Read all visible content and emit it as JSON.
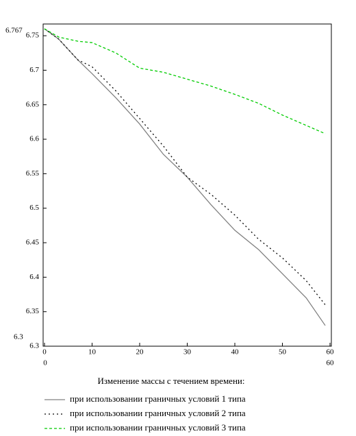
{
  "chart_data": {
    "type": "line",
    "title": "Изменение массы с течением времени:",
    "x": [
      0,
      3,
      7,
      10,
      15,
      20,
      25,
      30,
      35,
      40,
      45,
      50,
      55,
      59
    ],
    "series": [
      {
        "name": "при использовании граничных условий 1 типа",
        "color": "#808080",
        "style": "solid",
        "values": [
          6.76,
          6.745,
          6.715,
          6.695,
          6.66,
          6.622,
          6.578,
          6.545,
          6.505,
          6.468,
          6.44,
          6.405,
          6.37,
          6.33
        ]
      },
      {
        "name": "при использовании граничных условий 2 типа",
        "color": "#000000",
        "style": "dotted",
        "values": [
          6.76,
          6.745,
          6.715,
          6.705,
          6.67,
          6.63,
          6.59,
          6.545,
          6.52,
          6.49,
          6.455,
          6.428,
          6.395,
          6.36
        ]
      },
      {
        "name": "при использовании граничных условий 3 типа",
        "color": "#00cc00",
        "style": "dashed",
        "values": [
          6.76,
          6.748,
          6.742,
          6.74,
          6.725,
          6.703,
          6.697,
          6.687,
          6.677,
          6.665,
          6.652,
          6.635,
          6.62,
          6.608
        ]
      }
    ],
    "xlim": [
      0,
      60
    ],
    "xticks": [
      0,
      10,
      20,
      30,
      40,
      50,
      60
    ],
    "ylim": [
      6.3,
      6.767
    ],
    "yticks": [
      6.3,
      6.35,
      6.4,
      6.45,
      6.5,
      6.55,
      6.6,
      6.65,
      6.7,
      6.75
    ],
    "grid": false
  }
}
